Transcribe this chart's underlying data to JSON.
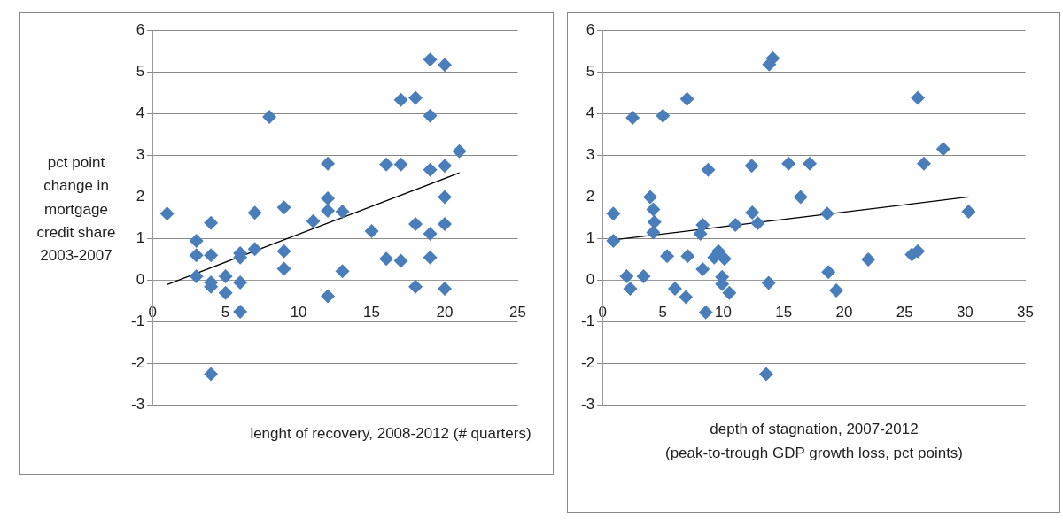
{
  "chart_data": [
    {
      "type": "scatter",
      "xlabel": "lenght of recovery, 2008-2012 (# quarters)",
      "ylabel": "pct point change in mortgage credit share 2003-2007",
      "xlim": [
        0,
        25
      ],
      "xticks": [
        0,
        5,
        10,
        15,
        20,
        25
      ],
      "ylim": [
        -3,
        6
      ],
      "yticks": [
        -3,
        -2,
        -1,
        0,
        1,
        2,
        3,
        4,
        5,
        6
      ],
      "grid": "y",
      "legend": false,
      "marker": "diamond",
      "series": [
        {
          "type": "scatter",
          "color": "#4a7ebb",
          "x": [
            1,
            3,
            3,
            3,
            4,
            4,
            4,
            4,
            4,
            5,
            5,
            6,
            6,
            6,
            6,
            7,
            7,
            8,
            9,
            9,
            9,
            11,
            12,
            12,
            12,
            12,
            13,
            13,
            15,
            16,
            16,
            17,
            17,
            17,
            18,
            18,
            18,
            19,
            19,
            19,
            19,
            19,
            20,
            20,
            20,
            20,
            20,
            21
          ],
          "values": [
            1.6,
            0.95,
            0.6,
            0.1,
            1.38,
            0.6,
            -0.05,
            -0.15,
            -2.25,
            0.1,
            -0.3,
            0.65,
            0.55,
            -0.05,
            -0.75,
            1.62,
            0.75,
            3.92,
            1.75,
            0.7,
            0.28,
            1.42,
            2.8,
            1.97,
            1.67,
            -0.38,
            1.65,
            0.22,
            1.18,
            2.78,
            0.52,
            4.33,
            2.78,
            0.47,
            4.38,
            1.35,
            -0.15,
            5.3,
            3.95,
            2.65,
            1.12,
            0.55,
            5.17,
            2.75,
            2.0,
            1.35,
            -0.2,
            3.1
          ]
        },
        {
          "type": "line",
          "color": "#000000",
          "marker": "none",
          "x": [
            1,
            21
          ],
          "values": [
            -0.1,
            2.58
          ]
        }
      ]
    },
    {
      "type": "scatter",
      "xlabel": "depth of stagnation, 2007-2012\n(peak-to-trough GDP growth loss, pct points)",
      "xlim": [
        0,
        35
      ],
      "xticks": [
        0,
        5,
        10,
        15,
        20,
        25,
        30,
        35
      ],
      "ylim": [
        -3,
        6
      ],
      "yticks": [
        -3,
        -2,
        -1,
        0,
        1,
        2,
        3,
        4,
        5,
        6
      ],
      "grid": "y",
      "legend": false,
      "marker": "diamond",
      "series": [
        {
          "type": "scatter",
          "color": "#4a7ebb",
          "x": [
            0.9,
            0.9,
            2.0,
            2.3,
            2.5,
            3.4,
            3.95,
            4.2,
            4.3,
            4.2,
            5,
            5.35,
            6,
            6.9,
            7,
            7.05,
            8.1,
            8.3,
            8.3,
            8.55,
            8.75,
            9.25,
            9.6,
            10.1,
            9.9,
            9.9,
            10.5,
            11,
            12.35,
            12.4,
            12.85,
            13.55,
            13.75,
            13.8,
            14.1,
            15.4,
            16.4,
            17.15,
            18.6,
            18.7,
            19.35,
            22,
            25.6,
            26.1,
            26.1,
            26.6,
            28.2,
            30.3
          ],
          "values": [
            1.6,
            0.95,
            0.1,
            -0.2,
            3.9,
            0.1,
            2.0,
            1.7,
            1.4,
            1.15,
            3.95,
            0.58,
            -0.2,
            -0.4,
            4.35,
            0.58,
            1.12,
            1.33,
            0.27,
            -0.77,
            2.65,
            0.55,
            0.7,
            0.52,
            0.08,
            -0.09,
            -0.3,
            1.33,
            2.75,
            1.63,
            1.37,
            -2.25,
            -0.06,
            5.18,
            5.33,
            2.8,
            2.0,
            2.8,
            1.6,
            0.2,
            -0.24,
            0.5,
            0.62,
            0.7,
            4.38,
            2.8,
            3.15,
            1.65
          ]
        },
        {
          "type": "line",
          "color": "#000000",
          "marker": "none",
          "x": [
            0.9,
            30.3
          ],
          "values": [
            0.97,
            2.0
          ]
        }
      ]
    }
  ]
}
